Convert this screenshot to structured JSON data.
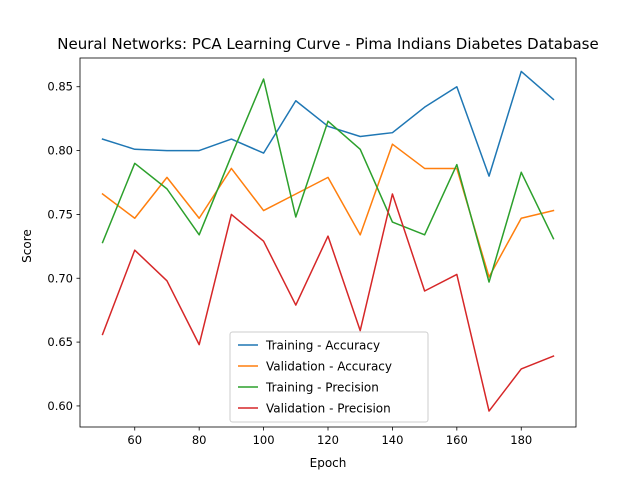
{
  "chart_data": {
    "type": "line",
    "title": "Neural Networks: PCA Learning Curve - Pima Indians Diabetes Database",
    "xlabel": "Epoch",
    "ylabel": "Score",
    "xlim": [
      43,
      197
    ],
    "ylim": [
      0.5835,
      0.8725
    ],
    "xticks": [
      60,
      80,
      100,
      120,
      140,
      160,
      180
    ],
    "yticks": [
      0.6,
      0.65,
      0.7,
      0.75,
      0.8,
      0.85
    ],
    "grid": false,
    "legend_position": "lower-center",
    "x": [
      50,
      60,
      70,
      80,
      90,
      100,
      110,
      120,
      130,
      140,
      150,
      160,
      170,
      180,
      190
    ],
    "series": [
      {
        "name": "Training - Accuracy",
        "color": "#1f77b4",
        "values": [
          0.809,
          0.801,
          0.8,
          0.8,
          0.809,
          0.798,
          0.839,
          0.819,
          0.811,
          0.814,
          0.834,
          0.85,
          0.78,
          0.862,
          0.84
        ]
      },
      {
        "name": "Validation - Accuracy",
        "color": "#ff7f0e",
        "values": [
          0.766,
          0.747,
          0.779,
          0.747,
          0.786,
          0.753,
          0.766,
          0.779,
          0.734,
          0.805,
          0.786,
          0.786,
          0.701,
          0.747,
          0.753
        ]
      },
      {
        "name": "Training - Precision",
        "color": "#2ca02c",
        "values": [
          0.728,
          0.79,
          0.77,
          0.734,
          0.796,
          0.856,
          0.748,
          0.823,
          0.801,
          0.744,
          0.734,
          0.789,
          0.697,
          0.783,
          0.731
        ]
      },
      {
        "name": "Validation - Precision",
        "color": "#d62728",
        "values": [
          0.656,
          0.722,
          0.698,
          0.648,
          0.75,
          0.729,
          0.679,
          0.733,
          0.659,
          0.766,
          0.69,
          0.703,
          0.596,
          0.629,
          0.639
        ]
      }
    ]
  }
}
